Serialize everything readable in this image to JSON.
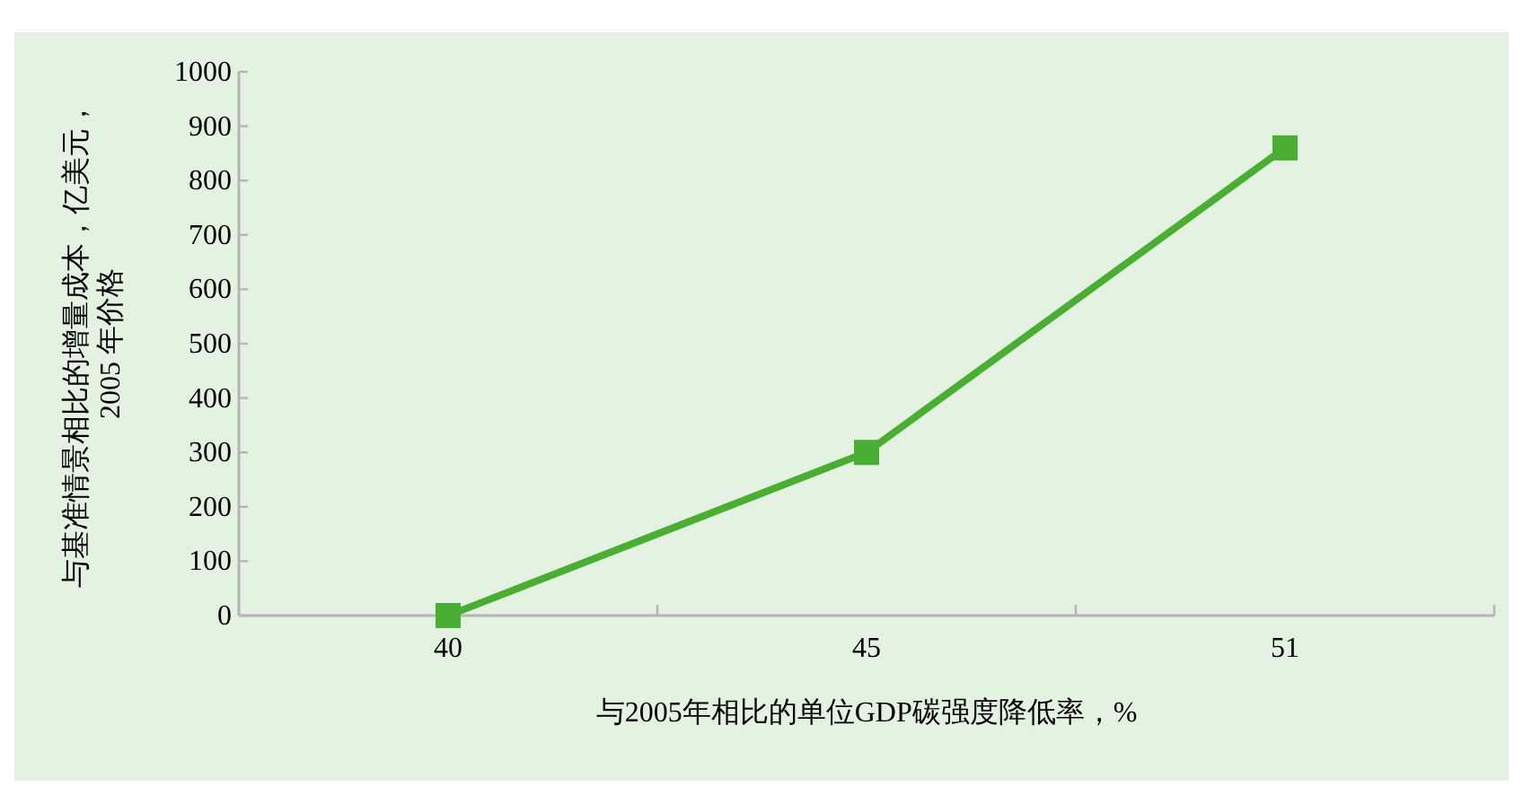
{
  "chart_data": {
    "type": "line",
    "xlabel": "与2005年相比的单位GDP碳强度降低率，%",
    "ylabel": "与基准情景相比的增量成本，亿美元，2005 年价格",
    "categories": [
      "40",
      "45",
      "51"
    ],
    "series": [
      {
        "color": "#4aae32",
        "values": [
          0,
          300,
          860
        ]
      }
    ],
    "ylim": [
      0,
      1000
    ],
    "yticks": [
      0,
      100,
      200,
      300,
      400,
      500,
      600,
      700,
      800,
      900,
      1000
    ],
    "marker": "square",
    "line_style": "solid",
    "grid": false
  }
}
